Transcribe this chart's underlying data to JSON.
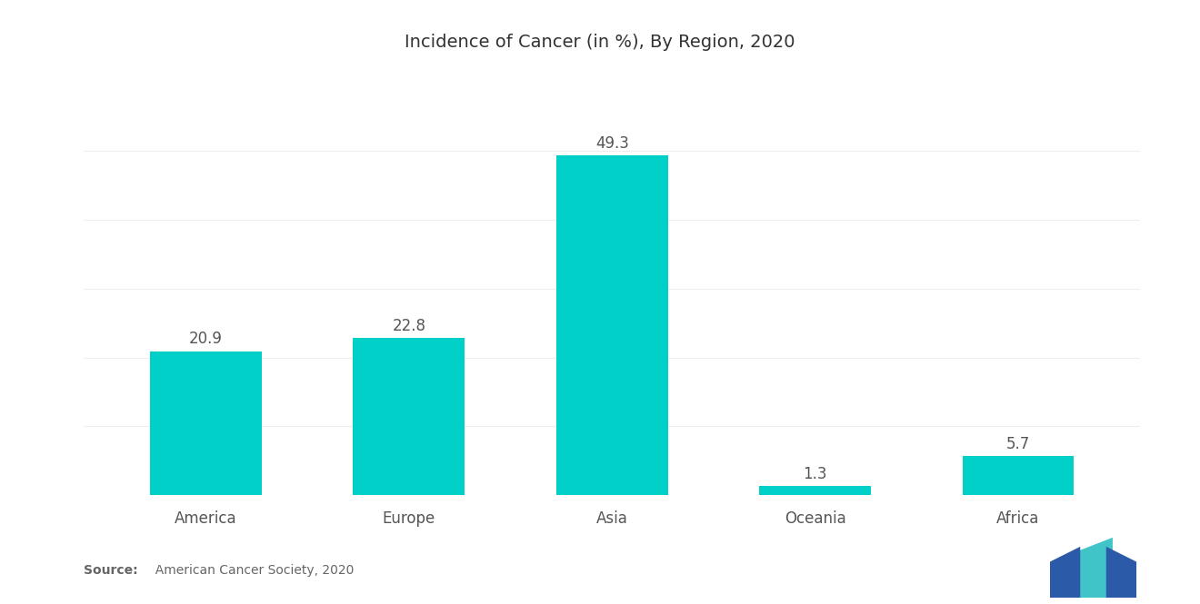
{
  "title": "Incidence of Cancer (in %), By Region, 2020",
  "categories": [
    "America",
    "Europe",
    "Asia",
    "Oceania",
    "Africa"
  ],
  "values": [
    20.9,
    22.8,
    49.3,
    1.3,
    5.7
  ],
  "bar_color": "#00D0C8",
  "background_color": "#ffffff",
  "title_fontsize": 14,
  "label_fontsize": 12,
  "value_fontsize": 12,
  "source_bold": "Source:",
  "source_normal": "  American Cancer Society, 2020",
  "ylim": [
    0,
    57
  ],
  "bar_width": 0.55,
  "logo_colors": {
    "dark_blue": "#2B5BA8",
    "teal": "#40C4C8"
  }
}
